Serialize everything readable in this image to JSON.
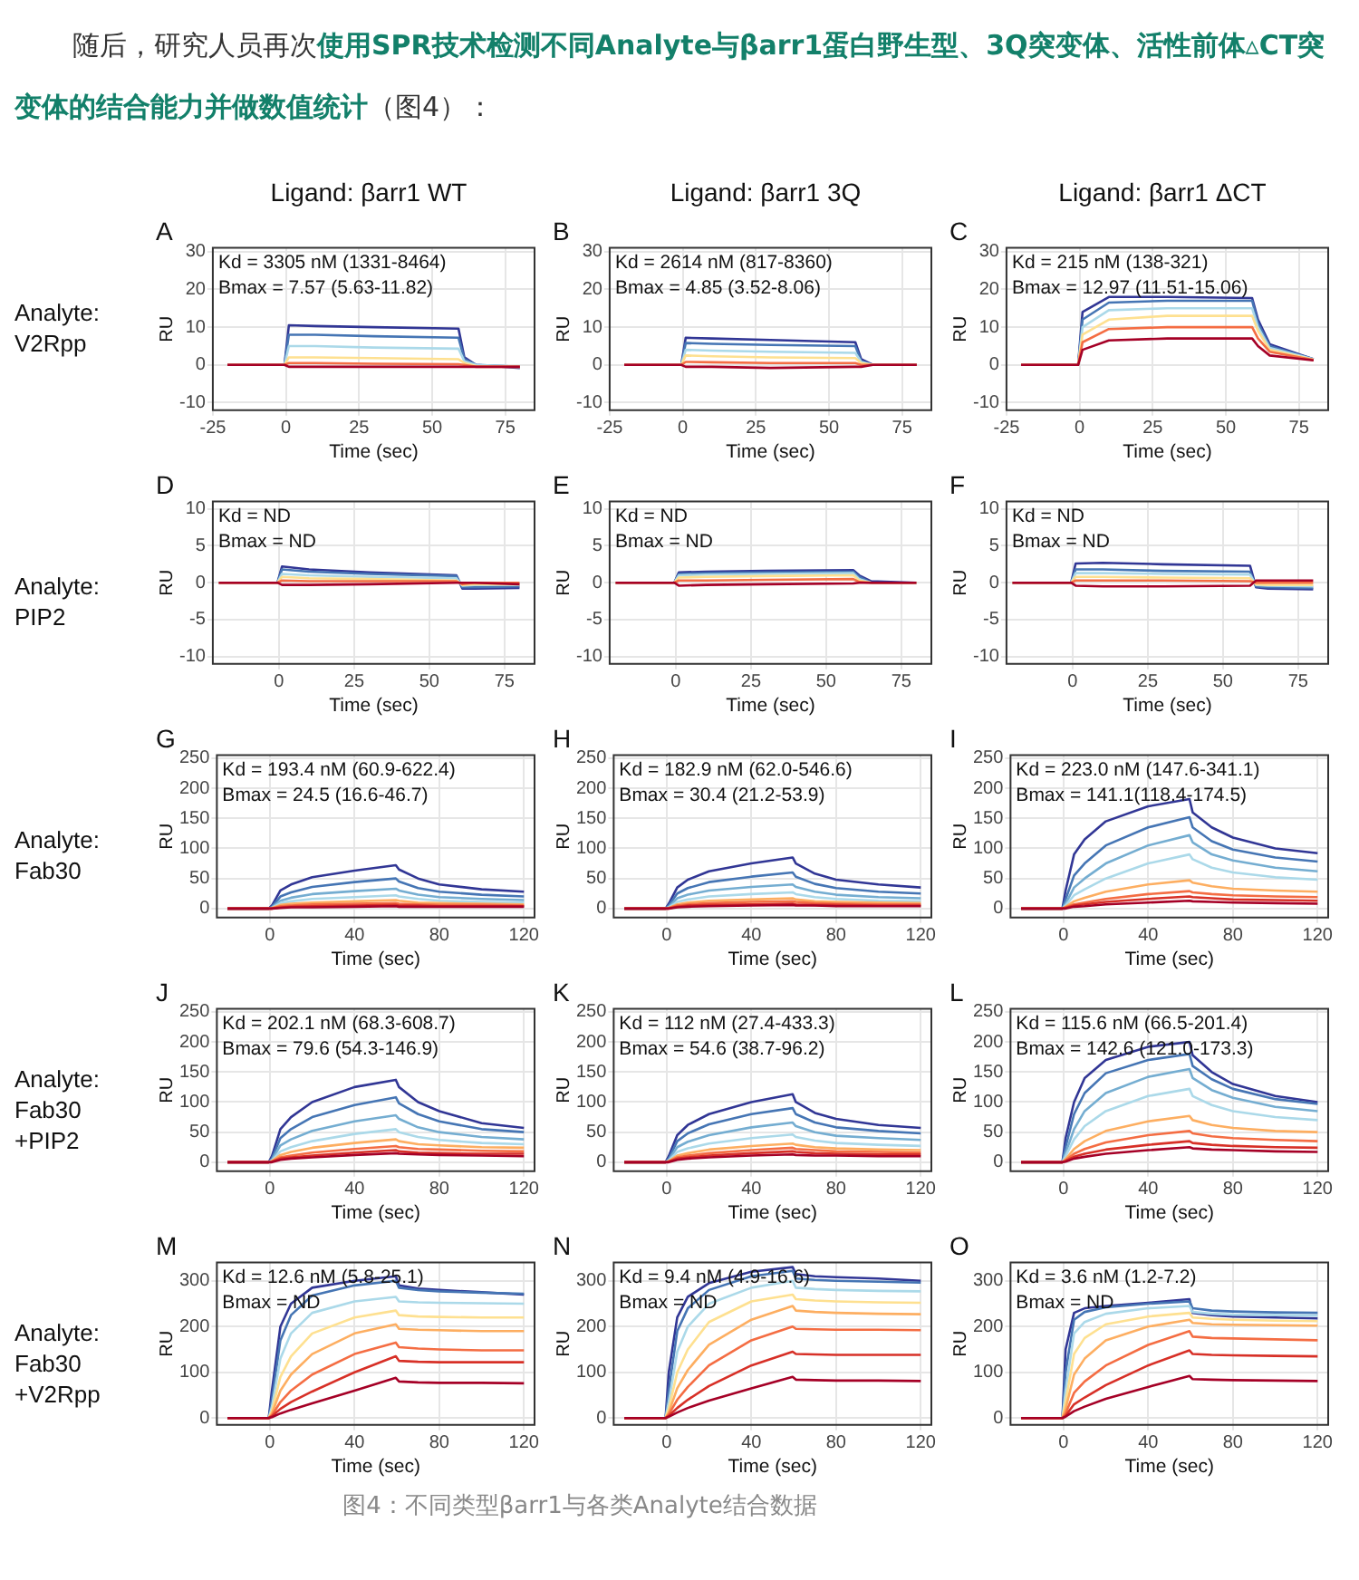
{
  "chart_data": [
    {
      "type": "other",
      "title": "随后，研究人员再次",
      "subtitle": "使用SPR技术检测不同Analyte与βarr1蛋白野生型、3Q突变体、活性前体▵CT突变体的结合能力并做数值统计",
      "annotations": [
        "（图4）："
      ]
    },
    {
      "type": "line",
      "title": "A",
      "subtitle": "Ligand: βarr1 WT",
      "xlabel": "Time (sec)",
      "ylabel": "RU",
      "annotations": [
        "Kd = 3305 nM (1331-8464)",
        "Bmax = 7.57 (5.63-11.82)",
        "Analyte:\nV2Rpp"
      ],
      "xlim": [
        -25,
        85
      ],
      "xticks": [
        -25,
        0,
        25,
        50,
        75
      ],
      "ylim": [
        -12,
        31
      ],
      "yticks": [
        -10,
        0,
        10,
        20,
        30
      ],
      "grid": true,
      "x": [
        -20,
        -0.5,
        1,
        10,
        30,
        59,
        61,
        65,
        80
      ],
      "series": [
        {
          "color": "#a50026",
          "values": [
            0,
            0,
            -0.5,
            -0.5,
            -0.5,
            -0.5,
            -0.5,
            -0.5,
            -0.5
          ]
        },
        {
          "color": "#f46d43",
          "values": [
            0,
            0,
            0.5,
            0.5,
            0.3,
            0.2,
            0,
            -0.5,
            -0.5
          ]
        },
        {
          "color": "#fee090",
          "values": [
            0,
            0,
            2,
            2,
            1.8,
            1.5,
            0.5,
            -0.3,
            -0.5
          ]
        },
        {
          "color": "#abd9e9",
          "values": [
            0,
            0,
            5,
            5,
            4.6,
            4.3,
            1,
            0,
            -0.5
          ]
        },
        {
          "color": "#4575b4",
          "values": [
            0,
            0,
            8,
            8,
            7.6,
            7.2,
            1.5,
            0,
            -0.5
          ]
        },
        {
          "color": "#313695",
          "values": [
            0,
            0,
            10.5,
            10.3,
            10,
            9.6,
            2,
            0,
            -0.8
          ]
        }
      ]
    },
    {
      "type": "line",
      "title": "B",
      "subtitle": "Ligand: βarr1 3Q",
      "xlabel": "Time (sec)",
      "ylabel": "RU",
      "annotations": [
        "Kd = 2614 nM (817-8360)",
        "Bmax = 4.85 (3.52-8.06)"
      ],
      "xlim": [
        -25,
        85
      ],
      "xticks": [
        -25,
        0,
        25,
        50,
        75
      ],
      "ylim": [
        -12,
        31
      ],
      "yticks": [
        -10,
        0,
        10,
        20,
        30
      ],
      "grid": true,
      "x": [
        -20,
        -0.5,
        1,
        10,
        30,
        59,
        61,
        65,
        80
      ],
      "series": [
        {
          "color": "#a50026",
          "values": [
            0,
            0,
            -0.5,
            -0.5,
            -0.8,
            -0.5,
            -0.5,
            0,
            0
          ]
        },
        {
          "color": "#f46d43",
          "values": [
            0,
            0,
            0.8,
            0.7,
            0.5,
            0.5,
            0,
            0,
            0
          ]
        },
        {
          "color": "#fee090",
          "values": [
            0,
            0,
            2.5,
            2.3,
            2,
            1.8,
            0.5,
            0,
            0
          ]
        },
        {
          "color": "#abd9e9",
          "values": [
            0,
            0,
            4,
            3.8,
            3.5,
            3.2,
            0.8,
            0,
            0
          ]
        },
        {
          "color": "#4575b4",
          "values": [
            0,
            0,
            5.8,
            5.6,
            5.3,
            5,
            1,
            0,
            0
          ]
        },
        {
          "color": "#313695",
          "values": [
            0,
            0,
            7.2,
            7,
            6.6,
            6,
            1.5,
            0,
            0
          ]
        }
      ]
    },
    {
      "type": "line",
      "title": "C",
      "subtitle": "Ligand: βarr1 ΔCT",
      "xlabel": "Time (sec)",
      "ylabel": "RU",
      "annotations": [
        "Kd = 215 nM (138-321)",
        "Bmax = 12.97 (11.51-15.06)"
      ],
      "xlim": [
        -25,
        85
      ],
      "xticks": [
        -25,
        0,
        25,
        50,
        75
      ],
      "ylim": [
        -12,
        31
      ],
      "yticks": [
        -10,
        0,
        10,
        20,
        30
      ],
      "grid": true,
      "x": [
        -20,
        -0.5,
        1,
        10,
        30,
        59,
        61,
        65,
        80
      ],
      "series": [
        {
          "color": "#a50026",
          "values": [
            0,
            0,
            4,
            6.5,
            7,
            7,
            5,
            2.5,
            1.2
          ]
        },
        {
          "color": "#f46d43",
          "values": [
            0,
            0,
            6,
            9.5,
            10,
            10,
            7,
            3.5,
            1.3
          ]
        },
        {
          "color": "#fee090",
          "values": [
            0,
            0,
            8,
            12,
            13,
            13,
            9,
            4,
            1.4
          ]
        },
        {
          "color": "#abd9e9",
          "values": [
            0,
            0,
            10,
            14.5,
            15,
            15,
            10,
            4.5,
            1.5
          ]
        },
        {
          "color": "#4575b4",
          "values": [
            0,
            0,
            12,
            16.5,
            17,
            17,
            11,
            5,
            1.5
          ]
        },
        {
          "color": "#313695",
          "values": [
            0,
            0,
            14,
            18,
            18,
            17.7,
            12,
            5.5,
            1.5
          ]
        }
      ]
    },
    {
      "type": "line",
      "title": "D",
      "xlabel": "Time (sec)",
      "ylabel": "RU",
      "annotations": [
        "Kd = ND",
        "Bmax = ND",
        "Analyte:\nPIP2"
      ],
      "xlim": [
        -22,
        85
      ],
      "xticks": [
        0,
        25,
        50,
        75
      ],
      "ylim": [
        -11,
        11
      ],
      "yticks": [
        -10,
        -5,
        0,
        5,
        10
      ],
      "grid": true,
      "x": [
        -20,
        -0.5,
        1,
        10,
        30,
        59,
        61,
        65,
        80
      ],
      "series": [
        {
          "color": "#a50026",
          "values": [
            0,
            0,
            -0.3,
            -0.3,
            -0.2,
            0,
            0,
            0,
            -0.2
          ]
        },
        {
          "color": "#f46d43",
          "values": [
            0,
            0,
            0.3,
            0.2,
            0.2,
            0.2,
            -0.2,
            0,
            0
          ]
        },
        {
          "color": "#fee090",
          "values": [
            0,
            0,
            0.8,
            0.6,
            0.5,
            0.3,
            -0.3,
            -0.2,
            -0.2
          ]
        },
        {
          "color": "#abd9e9",
          "values": [
            0,
            0,
            1.2,
            1,
            0.8,
            0.6,
            -0.4,
            -0.3,
            -0.3
          ]
        },
        {
          "color": "#4575b4",
          "values": [
            0,
            0,
            1.8,
            1.5,
            1.2,
            0.9,
            -0.6,
            -0.6,
            -0.5
          ]
        },
        {
          "color": "#313695",
          "values": [
            0,
            0,
            2.2,
            1.8,
            1.4,
            1,
            -0.8,
            -0.8,
            -0.7
          ]
        }
      ]
    },
    {
      "type": "line",
      "title": "E",
      "xlabel": "Time (sec)",
      "ylabel": "RU",
      "annotations": [
        "Kd = ND",
        "Bmax = ND"
      ],
      "xlim": [
        -22,
        85
      ],
      "xticks": [
        0,
        25,
        50,
        75
      ],
      "ylim": [
        -11,
        11
      ],
      "yticks": [
        -10,
        -5,
        0,
        5,
        10
      ],
      "grid": true,
      "x": [
        -20,
        -0.5,
        1,
        10,
        30,
        59,
        61,
        65,
        80
      ],
      "series": [
        {
          "color": "#a50026",
          "values": [
            0,
            0,
            -0.4,
            -0.3,
            -0.2,
            -0.1,
            0,
            0,
            0
          ]
        },
        {
          "color": "#f46d43",
          "values": [
            0,
            0,
            0.3,
            0.3,
            0.4,
            0.5,
            0.1,
            0,
            0
          ]
        },
        {
          "color": "#fee090",
          "values": [
            0,
            0,
            0.7,
            0.8,
            0.9,
            1,
            0.3,
            0,
            0
          ]
        },
        {
          "color": "#abd9e9",
          "values": [
            0,
            0,
            1,
            1.1,
            1.2,
            1.3,
            0.5,
            0,
            0
          ]
        },
        {
          "color": "#4575b4",
          "values": [
            0,
            0,
            1.2,
            1.3,
            1.4,
            1.5,
            0.8,
            0,
            0
          ]
        },
        {
          "color": "#313695",
          "values": [
            0,
            0,
            1.4,
            1.5,
            1.6,
            1.7,
            1,
            0.2,
            0
          ]
        }
      ]
    },
    {
      "type": "line",
      "title": "F",
      "xlabel": "Time (sec)",
      "ylabel": "RU",
      "annotations": [
        "Kd = ND",
        "Bmax = ND"
      ],
      "xlim": [
        -22,
        85
      ],
      "xticks": [
        0,
        25,
        50,
        75
      ],
      "ylim": [
        -11,
        11
      ],
      "yticks": [
        -10,
        -5,
        0,
        5,
        10
      ],
      "grid": true,
      "x": [
        -20,
        -0.5,
        1,
        10,
        30,
        59,
        61,
        65,
        80
      ],
      "series": [
        {
          "color": "#a50026",
          "values": [
            0,
            0,
            -0.4,
            -0.5,
            -0.5,
            -0.4,
            0.3,
            0.3,
            0.3
          ]
        },
        {
          "color": "#f46d43",
          "values": [
            0,
            0,
            0.3,
            0.3,
            0.3,
            0.2,
            0,
            0,
            0
          ]
        },
        {
          "color": "#fee090",
          "values": [
            0,
            0,
            0.8,
            0.8,
            0.7,
            0.6,
            -0.2,
            -0.3,
            -0.3
          ]
        },
        {
          "color": "#abd9e9",
          "values": [
            0,
            0,
            1.3,
            1.3,
            1.2,
            1.1,
            -0.3,
            -0.4,
            -0.5
          ]
        },
        {
          "color": "#4575b4",
          "values": [
            0,
            0,
            1.8,
            1.8,
            1.6,
            1.5,
            -0.5,
            -0.6,
            -0.7
          ]
        },
        {
          "color": "#313695",
          "values": [
            0,
            0,
            2.6,
            2.7,
            2.5,
            2.3,
            -0.6,
            -0.8,
            -0.9
          ]
        }
      ]
    },
    {
      "type": "line",
      "title": "G",
      "xlabel": "Time (sec)",
      "ylabel": "RU",
      "annotations": [
        "Kd = 193.4 nM (60.9-622.4)",
        "Bmax = 24.5 (16.6-46.7)",
        "Analyte:\nFab30"
      ],
      "xlim": [
        -25,
        125
      ],
      "xticks": [
        0,
        40,
        80,
        120
      ],
      "ylim": [
        -15,
        255
      ],
      "yticks": [
        0,
        50,
        100,
        150,
        200,
        250
      ],
      "grid": true,
      "x": [
        -20,
        -0.5,
        1,
        5,
        10,
        20,
        40,
        59.5,
        61,
        70,
        80,
        100,
        120
      ],
      "series": [
        {
          "color": "#a50026",
          "values": [
            0,
            0,
            0,
            1,
            2,
            2,
            3,
            4,
            3,
            3,
            3,
            3,
            3
          ]
        },
        {
          "color": "#d73027",
          "values": [
            0,
            0,
            0,
            2,
            3,
            4,
            5,
            6,
            5,
            5,
            4,
            4,
            4
          ]
        },
        {
          "color": "#f46d43",
          "values": [
            0,
            0,
            0,
            4,
            5,
            7,
            8,
            9,
            8,
            7,
            6,
            6,
            5
          ]
        },
        {
          "color": "#fdae61",
          "values": [
            0,
            0,
            1,
            6,
            8,
            10,
            12,
            14,
            13,
            10,
            9,
            8,
            7
          ]
        },
        {
          "color": "#abd9e9",
          "values": [
            0,
            0,
            1,
            9,
            12,
            16,
            19,
            22,
            20,
            16,
            13,
            11,
            10
          ]
        },
        {
          "color": "#74add1",
          "values": [
            0,
            0,
            2,
            13,
            18,
            24,
            29,
            33,
            30,
            23,
            19,
            16,
            14
          ]
        },
        {
          "color": "#4575b4",
          "values": [
            0,
            0,
            3,
            20,
            27,
            36,
            44,
            50,
            45,
            34,
            28,
            23,
            20
          ]
        },
        {
          "color": "#313695",
          "values": [
            0,
            0,
            5,
            30,
            40,
            52,
            63,
            72,
            65,
            50,
            40,
            32,
            28
          ]
        }
      ]
    },
    {
      "type": "line",
      "title": "H",
      "xlabel": "Time (sec)",
      "ylabel": "RU",
      "annotations": [
        "Kd = 182.9 nM (62.0-546.6)",
        "Bmax = 30.4 (21.2-53.9)"
      ],
      "xlim": [
        -25,
        125
      ],
      "xticks": [
        0,
        40,
        80,
        120
      ],
      "ylim": [
        -15,
        255
      ],
      "yticks": [
        0,
        50,
        100,
        150,
        200,
        250
      ],
      "grid": true,
      "x": [
        -20,
        -0.5,
        1,
        5,
        10,
        20,
        40,
        59.5,
        61,
        70,
        80,
        100,
        120
      ],
      "series": [
        {
          "color": "#a50026",
          "values": [
            0,
            0,
            0,
            2,
            3,
            4,
            5,
            6,
            5,
            5,
            4,
            4,
            4
          ]
        },
        {
          "color": "#d73027",
          "values": [
            0,
            0,
            0,
            3,
            5,
            6,
            7,
            8,
            7,
            6,
            6,
            5,
            5
          ]
        },
        {
          "color": "#f46d43",
          "values": [
            0,
            0,
            1,
            5,
            7,
            9,
            11,
            12,
            11,
            9,
            8,
            7,
            7
          ]
        },
        {
          "color": "#fdae61",
          "values": [
            0,
            0,
            1,
            7,
            10,
            13,
            15,
            17,
            15,
            12,
            11,
            10,
            9
          ]
        },
        {
          "color": "#abd9e9",
          "values": [
            0,
            0,
            2,
            11,
            15,
            20,
            24,
            27,
            24,
            19,
            16,
            13,
            12
          ]
        },
        {
          "color": "#74add1",
          "values": [
            0,
            0,
            3,
            17,
            23,
            30,
            36,
            40,
            36,
            28,
            23,
            19,
            17
          ]
        },
        {
          "color": "#4575b4",
          "values": [
            0,
            0,
            5,
            25,
            34,
            44,
            53,
            60,
            53,
            41,
            34,
            28,
            25
          ]
        },
        {
          "color": "#313695",
          "values": [
            0,
            0,
            8,
            35,
            48,
            62,
            75,
            85,
            75,
            58,
            48,
            40,
            35
          ]
        }
      ]
    },
    {
      "type": "line",
      "title": "I",
      "xlabel": "Time (sec)",
      "ylabel": "RU",
      "annotations": [
        "Kd = 223.0 nM (147.6-341.1)",
        "Bmax = 141.1(118.4-174.5)"
      ],
      "xlim": [
        -25,
        125
      ],
      "xticks": [
        0,
        40,
        80,
        120
      ],
      "ylim": [
        -15,
        255
      ],
      "yticks": [
        0,
        50,
        100,
        150,
        200,
        250
      ],
      "grid": true,
      "x": [
        -20,
        -0.5,
        1,
        5,
        10,
        20,
        40,
        59.5,
        61,
        70,
        80,
        100,
        120
      ],
      "series": [
        {
          "color": "#a50026",
          "values": [
            0,
            0,
            0,
            3,
            4,
            7,
            10,
            13,
            12,
            11,
            10,
            9,
            8
          ]
        },
        {
          "color": "#d73027",
          "values": [
            0,
            0,
            1,
            5,
            7,
            11,
            16,
            20,
            19,
            17,
            15,
            14,
            13
          ]
        },
        {
          "color": "#f46d43",
          "values": [
            0,
            0,
            2,
            7,
            10,
            16,
            24,
            29,
            27,
            24,
            22,
            20,
            19
          ]
        },
        {
          "color": "#fdae61",
          "values": [
            0,
            0,
            3,
            12,
            18,
            28,
            40,
            47,
            43,
            37,
            33,
            30,
            28
          ]
        },
        {
          "color": "#abd9e9",
          "values": [
            0,
            0,
            5,
            22,
            32,
            50,
            75,
            90,
            82,
            68,
            60,
            52,
            48
          ]
        },
        {
          "color": "#74add1",
          "values": [
            0,
            0,
            8,
            35,
            50,
            75,
            105,
            122,
            110,
            90,
            80,
            68,
            62
          ]
        },
        {
          "color": "#4575b4",
          "values": [
            0,
            0,
            15,
            55,
            75,
            105,
            135,
            152,
            135,
            112,
            98,
            85,
            78
          ]
        },
        {
          "color": "#313695",
          "values": [
            0,
            0,
            30,
            90,
            115,
            145,
            170,
            182,
            160,
            135,
            118,
            100,
            92
          ]
        }
      ]
    },
    {
      "type": "line",
      "title": "J",
      "xlabel": "Time (sec)",
      "ylabel": "RU",
      "annotations": [
        "Kd = 202.1 nM (68.3-608.7)",
        "Bmax = 79.6 (54.3-146.9)",
        "Analyte:\nFab30\n+PIP2"
      ],
      "xlim": [
        -25,
        125
      ],
      "xticks": [
        0,
        40,
        80,
        120
      ],
      "ylim": [
        -15,
        255
      ],
      "yticks": [
        0,
        50,
        100,
        150,
        200,
        250
      ],
      "grid": true,
      "x": [
        -20,
        -0.5,
        1,
        5,
        10,
        20,
        40,
        59.5,
        61,
        70,
        80,
        100,
        120
      ],
      "series": [
        {
          "color": "#a50026",
          "values": [
            0,
            0,
            0,
            4,
            6,
            8,
            12,
            15,
            14,
            13,
            12,
            11,
            10
          ]
        },
        {
          "color": "#d73027",
          "values": [
            0,
            0,
            1,
            6,
            8,
            11,
            16,
            20,
            18,
            16,
            15,
            14,
            14
          ]
        },
        {
          "color": "#f46d43",
          "values": [
            0,
            0,
            1,
            8,
            11,
            16,
            22,
            27,
            25,
            22,
            21,
            19,
            18
          ]
        },
        {
          "color": "#fdae61",
          "values": [
            0,
            0,
            2,
            12,
            17,
            24,
            32,
            38,
            35,
            30,
            28,
            25,
            24
          ]
        },
        {
          "color": "#abd9e9",
          "values": [
            0,
            0,
            3,
            18,
            25,
            35,
            47,
            55,
            50,
            42,
            37,
            32,
            30
          ]
        },
        {
          "color": "#74add1",
          "values": [
            0,
            0,
            4,
            28,
            38,
            52,
            68,
            78,
            72,
            58,
            50,
            42,
            38
          ]
        },
        {
          "color": "#4575b4",
          "values": [
            0,
            0,
            6,
            40,
            55,
            75,
            95,
            108,
            98,
            80,
            68,
            55,
            50
          ]
        },
        {
          "color": "#313695",
          "values": [
            0,
            0,
            10,
            55,
            75,
            100,
            125,
            137,
            125,
            100,
            85,
            65,
            57
          ]
        }
      ]
    },
    {
      "type": "line",
      "title": "K",
      "xlabel": "Time (sec)",
      "ylabel": "RU",
      "annotations": [
        "Kd = 112 nM (27.4-433.3)",
        "Bmax = 54.6 (38.7-96.2)"
      ],
      "xlim": [
        -25,
        125
      ],
      "xticks": [
        0,
        40,
        80,
        120
      ],
      "ylim": [
        -15,
        255
      ],
      "yticks": [
        0,
        50,
        100,
        150,
        200,
        250
      ],
      "grid": true,
      "x": [
        -20,
        -0.5,
        1,
        5,
        10,
        20,
        40,
        59.5,
        61,
        70,
        80,
        100,
        120
      ],
      "series": [
        {
          "color": "#a50026",
          "values": [
            0,
            0,
            0,
            4,
            6,
            8,
            11,
            13,
            12,
            11,
            11,
            10,
            10
          ]
        },
        {
          "color": "#d73027",
          "values": [
            0,
            0,
            1,
            6,
            8,
            11,
            15,
            18,
            17,
            15,
            14,
            13,
            13
          ]
        },
        {
          "color": "#f46d43",
          "values": [
            0,
            0,
            1,
            8,
            11,
            15,
            20,
            24,
            22,
            20,
            18,
            17,
            16
          ]
        },
        {
          "color": "#fdae61",
          "values": [
            0,
            0,
            2,
            11,
            15,
            21,
            27,
            31,
            29,
            25,
            23,
            21,
            20
          ]
        },
        {
          "color": "#abd9e9",
          "values": [
            0,
            0,
            3,
            17,
            23,
            31,
            40,
            46,
            42,
            36,
            32,
            29,
            27
          ]
        },
        {
          "color": "#74add1",
          "values": [
            0,
            0,
            4,
            25,
            34,
            45,
            58,
            66,
            60,
            50,
            44,
            40,
            37
          ]
        },
        {
          "color": "#4575b4",
          "values": [
            0,
            0,
            6,
            35,
            48,
            63,
            80,
            90,
            80,
            66,
            58,
            52,
            48
          ]
        },
        {
          "color": "#313695",
          "values": [
            0,
            0,
            10,
            45,
            62,
            80,
            100,
            113,
            100,
            82,
            72,
            62,
            57
          ]
        }
      ]
    },
    {
      "type": "line",
      "title": "L",
      "xlabel": "Time (sec)",
      "ylabel": "RU",
      "annotations": [
        "Kd = 115.6 nM (66.5-201.4)",
        "Bmax = 142.6 (121.0-173.3)"
      ],
      "xlim": [
        -25,
        125
      ],
      "xticks": [
        0,
        40,
        80,
        120
      ],
      "ylim": [
        -15,
        255
      ],
      "yticks": [
        0,
        50,
        100,
        150,
        200,
        250
      ],
      "grid": true,
      "x": [
        -20,
        -0.5,
        1,
        5,
        10,
        20,
        40,
        59.5,
        61,
        70,
        80,
        100,
        120
      ],
      "series": [
        {
          "color": "#a50026",
          "values": [
            0,
            0,
            1,
            6,
            9,
            14,
            20,
            25,
            23,
            21,
            20,
            18,
            17
          ]
        },
        {
          "color": "#d73027",
          "values": [
            0,
            0,
            2,
            9,
            14,
            21,
            29,
            35,
            32,
            29,
            27,
            25,
            24
          ]
        },
        {
          "color": "#f46d43",
          "values": [
            0,
            0,
            3,
            14,
            22,
            33,
            45,
            52,
            48,
            43,
            40,
            37,
            35
          ]
        },
        {
          "color": "#fdae61",
          "values": [
            0,
            0,
            5,
            22,
            35,
            52,
            68,
            77,
            70,
            62,
            57,
            52,
            50
          ]
        },
        {
          "color": "#abd9e9",
          "values": [
            0,
            0,
            10,
            38,
            60,
            85,
            110,
            122,
            110,
            95,
            85,
            75,
            70
          ]
        },
        {
          "color": "#74add1",
          "values": [
            0,
            0,
            15,
            55,
            85,
            115,
            142,
            155,
            140,
            120,
            107,
            92,
            85
          ]
        },
        {
          "color": "#4575b4",
          "values": [
            0,
            0,
            25,
            80,
            115,
            148,
            170,
            180,
            160,
            138,
            122,
            105,
            97
          ]
        },
        {
          "color": "#313695",
          "values": [
            0,
            0,
            40,
            100,
            140,
            170,
            192,
            200,
            178,
            150,
            130,
            110,
            100
          ]
        }
      ]
    },
    {
      "type": "line",
      "title": "M",
      "xlabel": "Time (sec)",
      "ylabel": "RU",
      "annotations": [
        "Kd = 12.6 nM (5.8-25.1)",
        "Bmax = ND",
        "Analyte:\nFab30\n+V2Rpp"
      ],
      "xlim": [
        -25,
        125
      ],
      "xticks": [
        0,
        40,
        80,
        120
      ],
      "ylim": [
        -15,
        340
      ],
      "yticks": [
        0,
        100,
        200,
        300
      ],
      "grid": true,
      "x": [
        -20,
        -0.5,
        1,
        5,
        10,
        20,
        40,
        59.5,
        61,
        70,
        80,
        100,
        120
      ],
      "series": [
        {
          "color": "#a50026",
          "values": [
            0,
            0,
            2,
            10,
            18,
            32,
            60,
            88,
            80,
            78,
            77,
            77,
            76
          ]
        },
        {
          "color": "#d73027",
          "values": [
            0,
            0,
            4,
            20,
            35,
            58,
            100,
            135,
            125,
            123,
            122,
            122,
            122
          ]
        },
        {
          "color": "#f46d43",
          "values": [
            0,
            0,
            6,
            35,
            60,
            95,
            140,
            165,
            155,
            152,
            150,
            148,
            148
          ]
        },
        {
          "color": "#fdae61",
          "values": [
            0,
            0,
            10,
            60,
            95,
            140,
            185,
            205,
            195,
            193,
            192,
            190,
            190
          ]
        },
        {
          "color": "#fee090",
          "values": [
            0,
            0,
            15,
            90,
            135,
            185,
            220,
            235,
            225,
            222,
            221,
            220,
            220
          ]
        },
        {
          "color": "#abd9e9",
          "values": [
            0,
            0,
            25,
            130,
            185,
            230,
            255,
            265,
            255,
            253,
            252,
            251,
            250
          ]
        },
        {
          "color": "#4575b4",
          "values": [
            0,
            0,
            40,
            170,
            225,
            268,
            290,
            300,
            285,
            280,
            277,
            274,
            272
          ]
        },
        {
          "color": "#313695",
          "values": [
            0,
            0,
            60,
            200,
            250,
            285,
            300,
            310,
            290,
            283,
            280,
            275,
            270
          ]
        }
      ]
    },
    {
      "type": "line",
      "title": "N",
      "xlabel": "Time (sec)",
      "ylabel": "RU",
      "annotations": [
        "Kd = 9.4 nM (4.9-16.6)",
        "Bmax = ND"
      ],
      "xlim": [
        -25,
        125
      ],
      "xticks": [
        0,
        40,
        80,
        120
      ],
      "ylim": [
        -15,
        340
      ],
      "yticks": [
        0,
        100,
        200,
        300
      ],
      "grid": true,
      "x": [
        -20,
        -0.5,
        1,
        5,
        10,
        20,
        40,
        59.5,
        61,
        70,
        80,
        100,
        120
      ],
      "series": [
        {
          "color": "#a50026",
          "values": [
            0,
            0,
            3,
            12,
            22,
            38,
            65,
            90,
            84,
            83,
            82,
            82,
            81
          ]
        },
        {
          "color": "#d73027",
          "values": [
            0,
            0,
            5,
            22,
            40,
            70,
            115,
            145,
            140,
            139,
            138,
            138,
            138
          ]
        },
        {
          "color": "#f46d43",
          "values": [
            0,
            0,
            8,
            40,
            68,
            115,
            170,
            200,
            195,
            194,
            193,
            193,
            192
          ]
        },
        {
          "color": "#fdae61",
          "values": [
            0,
            0,
            12,
            65,
            105,
            160,
            215,
            245,
            235,
            232,
            230,
            228,
            227
          ]
        },
        {
          "color": "#fee090",
          "values": [
            0,
            0,
            20,
            100,
            150,
            210,
            255,
            270,
            260,
            257,
            255,
            253,
            252
          ]
        },
        {
          "color": "#abd9e9",
          "values": [
            0,
            0,
            35,
            145,
            200,
            250,
            285,
            300,
            285,
            282,
            280,
            278,
            277
          ]
        },
        {
          "color": "#4575b4",
          "values": [
            0,
            0,
            60,
            190,
            240,
            280,
            310,
            322,
            305,
            302,
            300,
            298,
            296
          ]
        },
        {
          "color": "#313695",
          "values": [
            0,
            0,
            100,
            220,
            265,
            295,
            320,
            330,
            315,
            310,
            308,
            305,
            300
          ]
        }
      ]
    },
    {
      "type": "line",
      "title": "O",
      "xlabel": "Time (sec)",
      "ylabel": "RU",
      "annotations": [
        "Kd = 3.6 nM (1.2-7.2)",
        "Bmax = ND"
      ],
      "xlim": [
        -25,
        125
      ],
      "xticks": [
        0,
        40,
        80,
        120
      ],
      "ylim": [
        -15,
        340
      ],
      "yticks": [
        0,
        100,
        200,
        300
      ],
      "grid": true,
      "x": [
        -20,
        -0.5,
        1,
        5,
        10,
        20,
        40,
        59.5,
        61,
        70,
        80,
        100,
        120
      ],
      "series": [
        {
          "color": "#a50026",
          "values": [
            0,
            0,
            3,
            15,
            25,
            42,
            68,
            92,
            85,
            84,
            83,
            82,
            81
          ]
        },
        {
          "color": "#d73027",
          "values": [
            0,
            0,
            5,
            30,
            45,
            72,
            115,
            148,
            140,
            138,
            137,
            136,
            135
          ]
        },
        {
          "color": "#f46d43",
          "values": [
            0,
            0,
            10,
            55,
            80,
            115,
            160,
            190,
            178,
            175,
            174,
            172,
            170
          ]
        },
        {
          "color": "#fdae61",
          "values": [
            0,
            0,
            20,
            95,
            130,
            170,
            200,
            215,
            208,
            205,
            204,
            203,
            202
          ]
        },
        {
          "color": "#fee090",
          "values": [
            0,
            0,
            35,
            140,
            175,
            205,
            222,
            230,
            220,
            217,
            215,
            213,
            212
          ]
        },
        {
          "color": "#abd9e9",
          "values": [
            0,
            0,
            60,
            185,
            210,
            228,
            240,
            245,
            232,
            228,
            226,
            225,
            224
          ]
        },
        {
          "color": "#4575b4",
          "values": [
            0,
            0,
            100,
            215,
            232,
            242,
            250,
            255,
            240,
            235,
            233,
            231,
            230
          ]
        },
        {
          "color": "#313695",
          "values": [
            0,
            0,
            150,
            230,
            240,
            245,
            252,
            260,
            230,
            225,
            222,
            220,
            218
          ]
        }
      ]
    },
    {
      "type": "other",
      "title": "图4：不同类型βarr1与各类Analyte结合数据"
    }
  ]
}
